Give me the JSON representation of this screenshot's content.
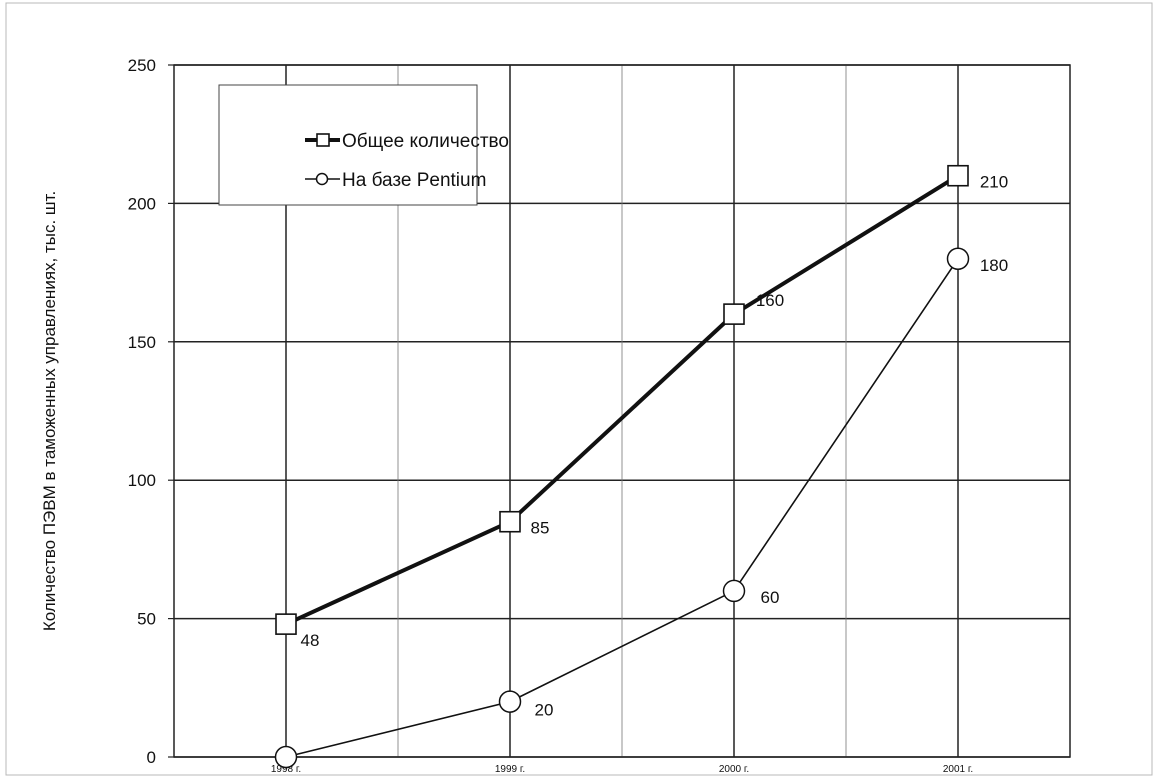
{
  "chart_data": {
    "type": "line",
    "title": "",
    "xlabel": "",
    "ylabel": "Количество ПЭВМ в таможенных управлениях, тыс. шт.",
    "categories": [
      "1998 г.",
      "1999 г.",
      "2000 г.",
      "2001 г."
    ],
    "ylim": [
      0,
      250
    ],
    "yticks": [
      0,
      50,
      100,
      150,
      200,
      250
    ],
    "grid": true,
    "legend_position": "top-left",
    "series": [
      {
        "name": "Общее количество",
        "values": [
          48,
          85,
          160,
          210
        ],
        "marker": "square",
        "line_style": "bold",
        "color": "#111111"
      },
      {
        "name": "На базе Pentium",
        "values": [
          0,
          20,
          60,
          180
        ],
        "marker": "circle",
        "line_style": "thin",
        "color": "#111111"
      }
    ]
  }
}
